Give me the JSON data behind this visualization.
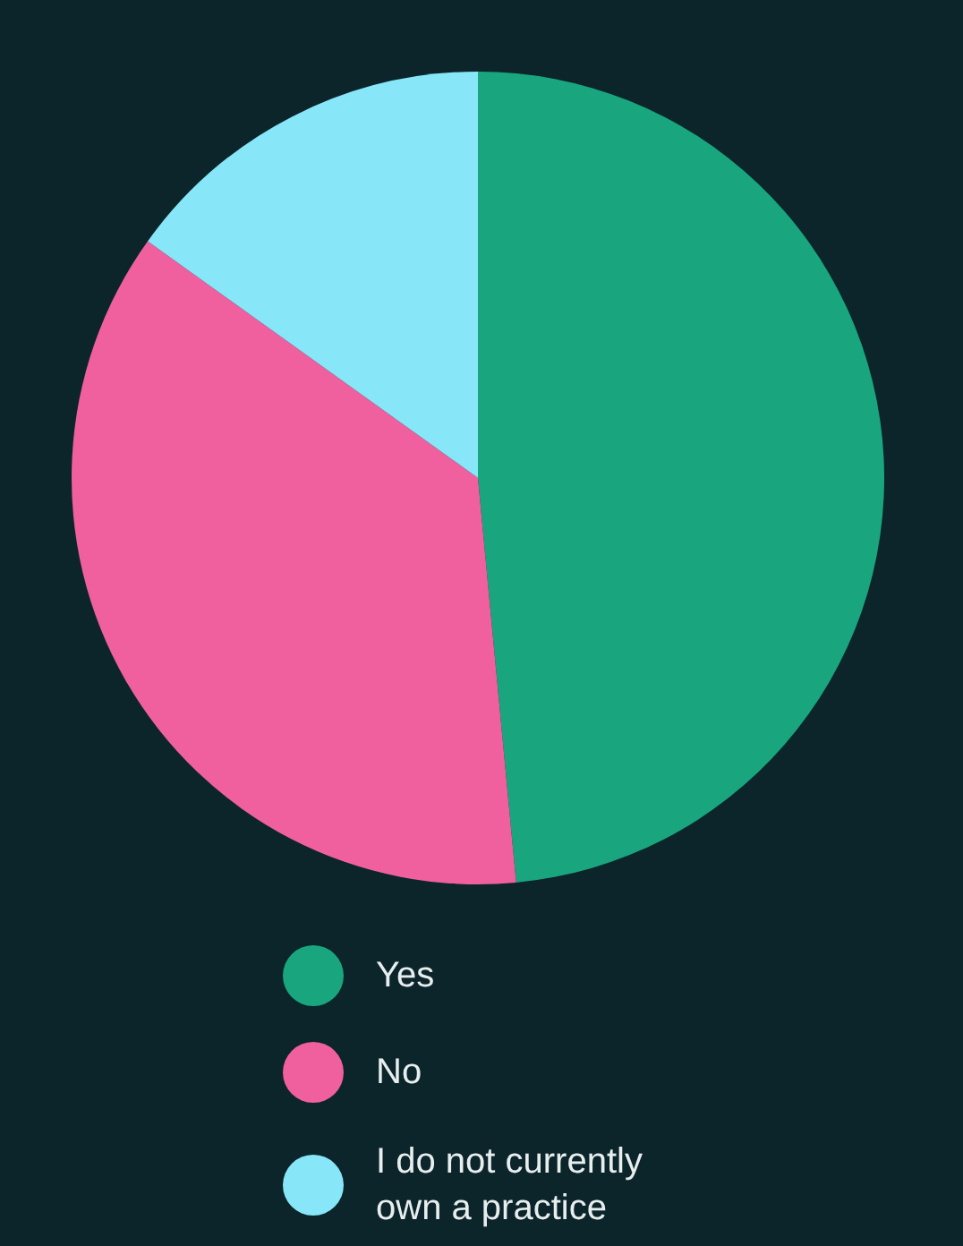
{
  "chart_data": {
    "type": "pie",
    "categories": [
      "Yes",
      "No",
      "I do not currently own a practice"
    ],
    "values": [
      48.5,
      36.4,
      15.1
    ],
    "colors": [
      "#19a67e",
      "#f0609f",
      "#87e6f8"
    ],
    "legend": "bottom"
  }
}
